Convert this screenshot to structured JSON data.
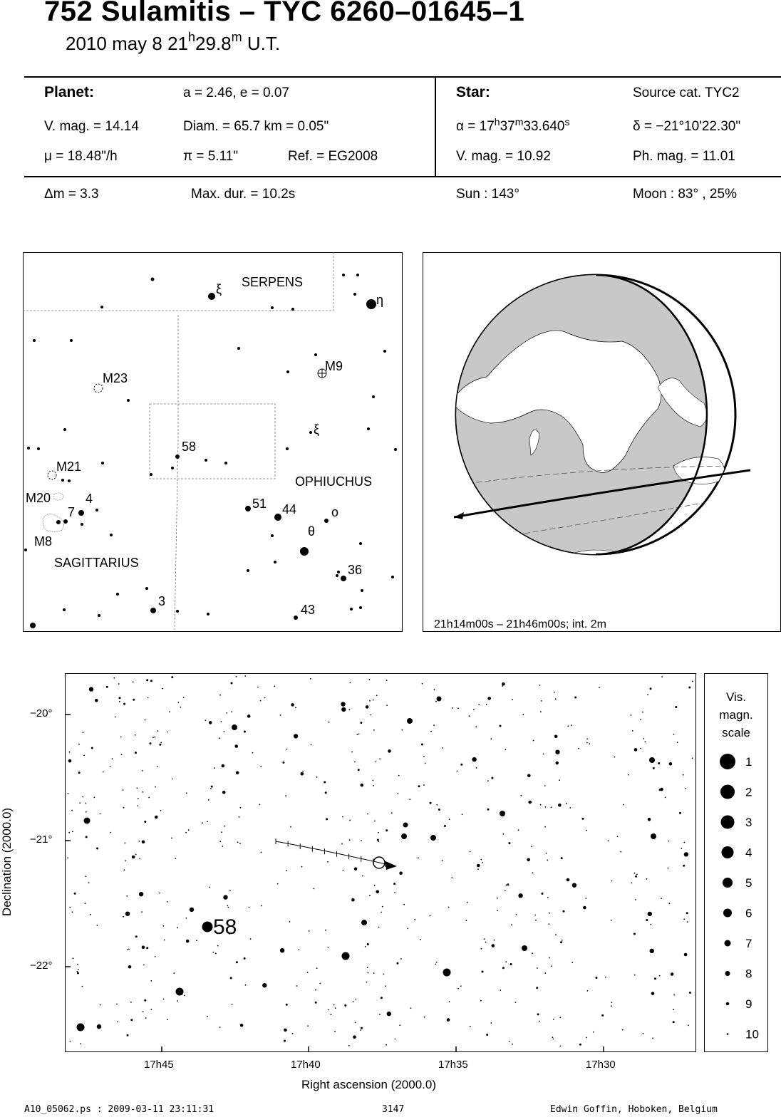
{
  "header": {
    "title": "752 Sulamitis  –  TYC 6260–01645–1",
    "date": "2010 may  8  21",
    "hour_sup": "h",
    "min": "29.8",
    "min_sup": "m",
    "ut": " U.T."
  },
  "planet": {
    "heading": "Planet:",
    "orbit": "a = 2.46, e = 0.07",
    "vmag": "V. mag. = 14.14",
    "diam": "Diam. = 65.7 km = 0.05\"",
    "mu": "μ =  18.48\"/h",
    "pi": "π =  5.11\"",
    "ref": "Ref. = EG2008"
  },
  "star": {
    "heading": "Star:",
    "source": "Source cat.  TYC2",
    "alpha_prefix": "α = 17",
    "alpha_h": "h",
    "alpha_mid": "37",
    "alpha_m": "m",
    "alpha_sec": "33.640",
    "alpha_s": "s",
    "delta": "δ = −21°10'22.30\"",
    "vmag": "V. mag. = 10.92",
    "phmag": "Ph. mag. = 11.01"
  },
  "event": {
    "dm": "Δm = 3.3",
    "maxdur": "Max. dur. = 10.2s",
    "sun": "Sun : 143°",
    "moon": "Moon :  83° , 25%"
  },
  "finder": {
    "labels": {
      "serpens": "SERPENS",
      "ophiuchus": "OPHIUCHUS",
      "sagittarius": "SAGITTARIUS",
      "m23": "M23",
      "m9": "M9",
      "m21": "M21",
      "m20": "M20",
      "m8": "M8",
      "s58": "58",
      "s4": "4",
      "s7": "7",
      "s51": "51",
      "s44": "44",
      "s36": "36",
      "s3": "3",
      "s43": "43",
      "xi1": "ξ",
      "xi2": "ξ",
      "eta": "η",
      "theta": "θ",
      "omicron": "o"
    }
  },
  "globe": {
    "caption": "21h14m00s – 21h46m00s; int.  2m"
  },
  "chart": {
    "dec_ticks": [
      "−20°",
      "−21°",
      "−22°"
    ],
    "ra_ticks": [
      "17h45",
      "17h40",
      "17h35",
      "17h30"
    ],
    "ylabel": "Declination (2000.0)",
    "xlabel": "Right ascension (2000.0)",
    "star_label": "58"
  },
  "legend": {
    "title1": "Vis.",
    "title2": "magn.",
    "title3": "scale",
    "mags": [
      "1",
      "2",
      "3",
      "4",
      "5",
      "6",
      "7",
      "8",
      "9",
      "10"
    ]
  },
  "footer": {
    "file": "A10_05062.ps : 2009-03-11 23:11:31",
    "number": "3147",
    "author": "Edwin Goffin, Hoboken, Belgium"
  }
}
